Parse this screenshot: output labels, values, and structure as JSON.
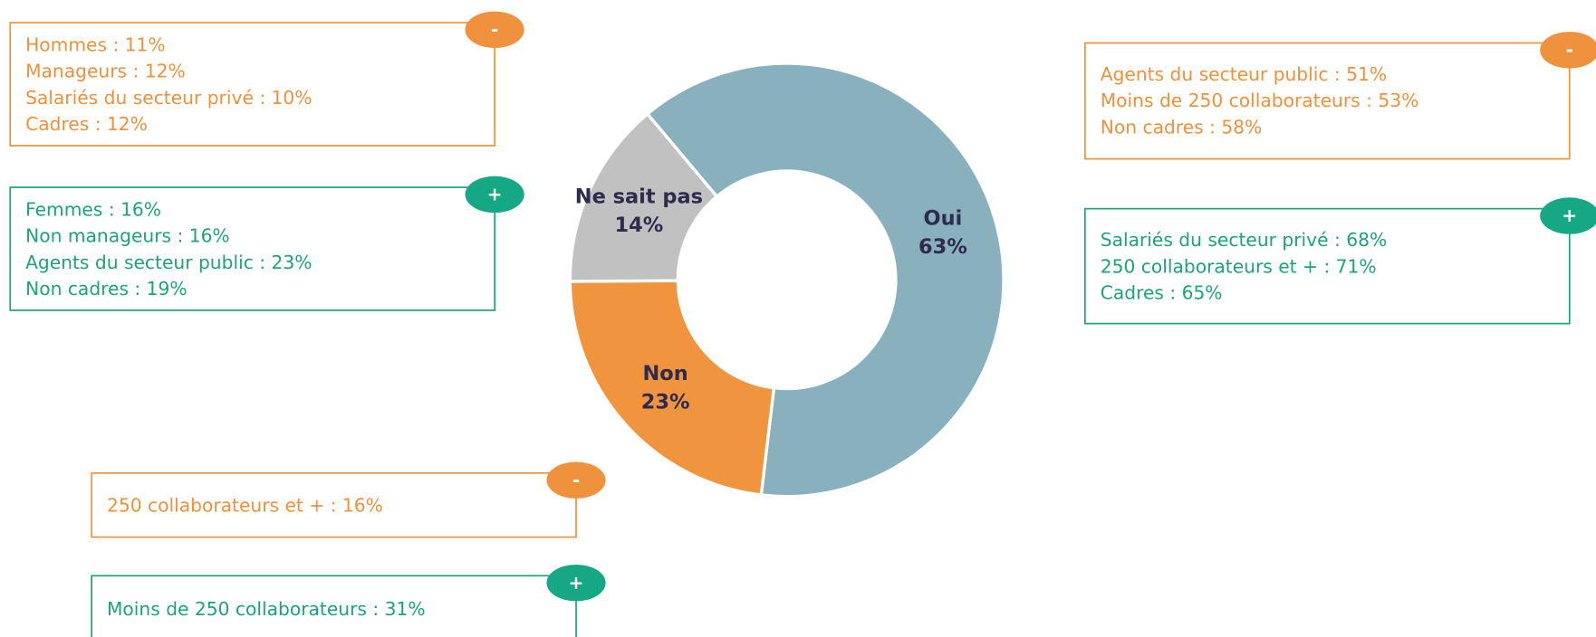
{
  "chart_data": {
    "type": "pie",
    "categories": [
      "Oui",
      "Non",
      "Ne sait pas"
    ],
    "values": [
      63,
      23,
      14
    ],
    "value_labels": [
      "63%",
      "23%",
      "14%"
    ],
    "colors": [
      "#88b0bd",
      "#f1943e",
      "#c1c1c1"
    ],
    "annotations": [
      {
        "sign": "-",
        "lines": [
          "Hommes : 11%",
          "Manageurs : 12%",
          "Salariés du secteur privé : 10%",
          "Cadres : 12%"
        ]
      },
      {
        "sign": "+",
        "lines": [
          "Femmes : 16%",
          "Non manageurs : 16%",
          "Agents du secteur public : 23%",
          "Non cadres : 19%"
        ]
      },
      {
        "sign": "-",
        "lines": [
          "Agents du secteur public : 51%",
          "Moins de 250 collaborateurs : 53%",
          "Non cadres : 58%"
        ]
      },
      {
        "sign": "+",
        "lines": [
          "Salariés du secteur privé : 68%",
          "250 collaborateurs et + : 71%",
          "Cadres : 65%"
        ]
      },
      {
        "sign": "-",
        "lines": [
          "250 collaborateurs et + : 16%"
        ]
      },
      {
        "sign": "+",
        "lines": [
          "Moins de 250 collaborateurs : 31%"
        ]
      }
    ]
  }
}
